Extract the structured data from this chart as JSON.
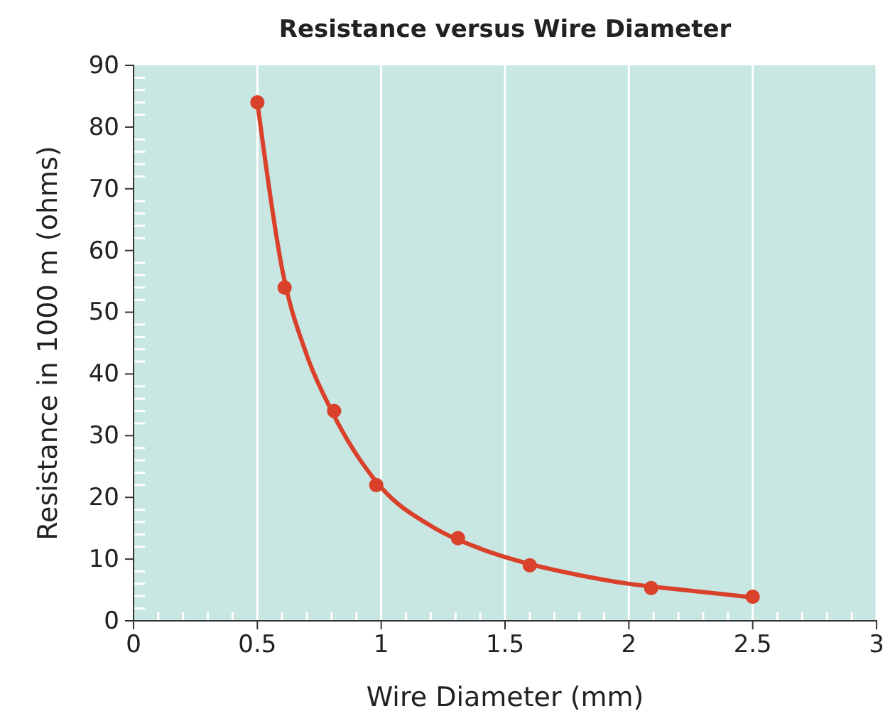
{
  "chart_data": {
    "type": "scatter",
    "title": "Resistance versus Wire Diameter",
    "xlabel": "Wire Diameter (mm)",
    "ylabel": "Resistance in 1000 m (ohms)",
    "xlim": [
      0,
      3
    ],
    "ylim": [
      0,
      90
    ],
    "xticks": [
      0,
      {
        "value": 0.1,
        "label": null
      },
      {
        "value": 0.2,
        "label": null
      },
      {
        "value": 0.3,
        "label": null
      },
      {
        "value": 0.4,
        "label": null
      },
      0.5,
      {
        "value": 0.6,
        "label": null
      },
      {
        "value": 0.7,
        "label": null
      },
      {
        "value": 0.8,
        "label": null
      },
      {
        "value": 0.9,
        "label": null
      },
      1,
      {
        "value": 1.1,
        "label": null
      },
      {
        "value": 1.2,
        "label": null
      },
      {
        "value": 1.3,
        "label": null
      },
      {
        "value": 1.4,
        "label": null
      },
      1.5,
      {
        "value": 1.6,
        "label": null
      },
      {
        "value": 1.7,
        "label": null
      },
      {
        "value": 1.8,
        "label": null
      },
      {
        "value": 1.9,
        "label": null
      },
      2,
      {
        "value": 2.1,
        "label": null
      },
      {
        "value": 2.2,
        "label": null
      },
      {
        "value": 2.3,
        "label": null
      },
      {
        "value": 2.4,
        "label": null
      },
      2.5,
      {
        "value": 2.6,
        "label": null
      },
      {
        "value": 2.7,
        "label": null
      },
      {
        "value": 2.8,
        "label": null
      },
      {
        "value": 2.9,
        "label": null
      },
      3
    ],
    "yticks": [
      0,
      {
        "value": 2,
        "label": null
      },
      {
        "value": 4,
        "label": null
      },
      {
        "value": 6,
        "label": null
      },
      {
        "value": 8,
        "label": null
      },
      10,
      {
        "value": 12,
        "label": null
      },
      {
        "value": 14,
        "label": null
      },
      {
        "value": 16,
        "label": null
      },
      {
        "value": 18,
        "label": null
      },
      20,
      {
        "value": 22,
        "label": null
      },
      {
        "value": 24,
        "label": null
      },
      {
        "value": 26,
        "label": null
      },
      {
        "value": 28,
        "label": null
      },
      30,
      {
        "value": 32,
        "label": null
      },
      {
        "value": 34,
        "label": null
      },
      {
        "value": 36,
        "label": null
      },
      {
        "value": 38,
        "label": null
      },
      40,
      {
        "value": 42,
        "label": null
      },
      {
        "value": 44,
        "label": null
      },
      {
        "value": 46,
        "label": null
      },
      {
        "value": 48,
        "label": null
      },
      50,
      {
        "value": 52,
        "label": null
      },
      {
        "value": 54,
        "label": null
      },
      {
        "value": 56,
        "label": null
      },
      {
        "value": 58,
        "label": null
      },
      60,
      {
        "value": 62,
        "label": null
      },
      {
        "value": 64,
        "label": null
      },
      {
        "value": 66,
        "label": null
      },
      {
        "value": 68,
        "label": null
      },
      70,
      {
        "value": 72,
        "label": null
      },
      {
        "value": 74,
        "label": null
      },
      {
        "value": 76,
        "label": null
      },
      {
        "value": 78,
        "label": null
      },
      80,
      {
        "value": 82,
        "label": null
      },
      {
        "value": 84,
        "label": null
      },
      {
        "value": 86,
        "label": null
      },
      {
        "value": 88,
        "label": null
      },
      90
    ],
    "grid": "x",
    "series": [
      {
        "type": "line",
        "color": "#d9412b",
        "marker": "none",
        "line_style": "solid",
        "x": [
          0.5,
          0.6,
          0.7,
          0.8,
          1.0,
          1.2,
          1.4,
          1.6,
          1.8,
          2.0,
          2.2,
          2.5
        ],
        "values": [
          84,
          57,
          43,
          34,
          21.6,
          15.4,
          11.7,
          9.2,
          7.4,
          6,
          5.1,
          3.8
        ]
      },
      {
        "color": "#d9412b",
        "marker": "circle",
        "x": [
          0.5,
          0.61,
          0.81,
          0.98,
          1.31,
          1.6,
          2.09,
          2.5
        ],
        "values": [
          84,
          54,
          34,
          22,
          13.4,
          9,
          5.3,
          3.9
        ]
      }
    ]
  }
}
